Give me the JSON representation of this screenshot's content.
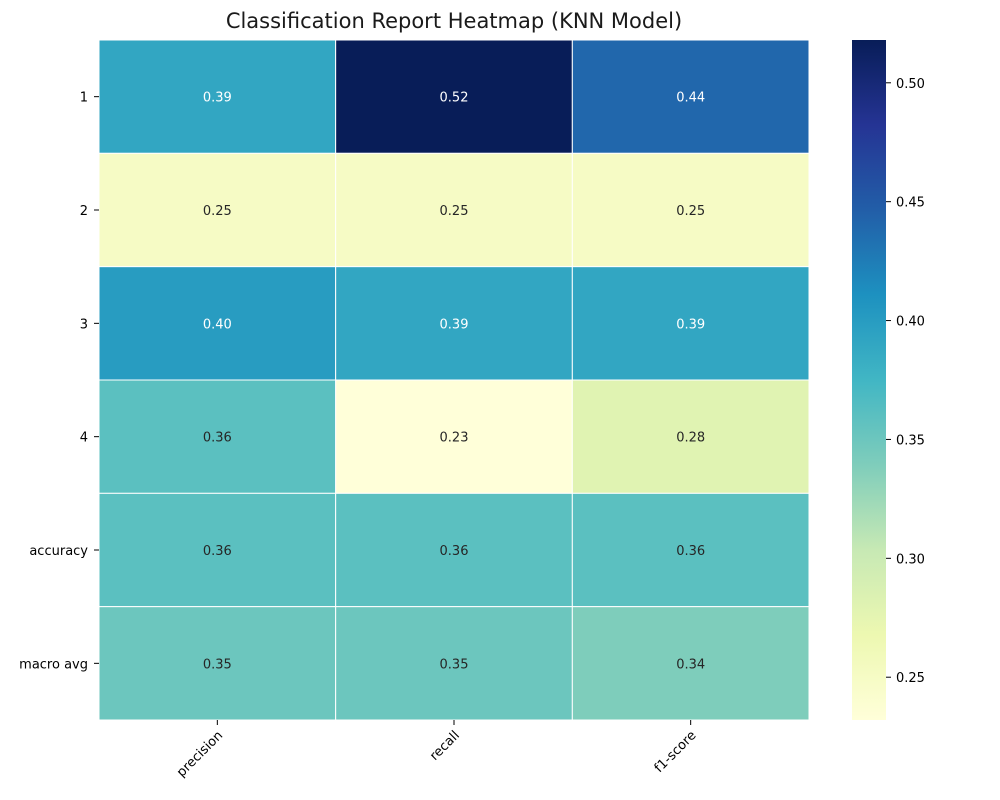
{
  "chart_data": {
    "type": "heatmap",
    "title": "Classification Report Heatmap (KNN Model)",
    "xlabel": "",
    "ylabel": "",
    "columns": [
      "precision",
      "recall",
      "f1-score"
    ],
    "rows": [
      "1",
      "2",
      "3",
      "4",
      "accuracy",
      "macro avg"
    ],
    "values": [
      [
        0.39,
        0.52,
        0.44
      ],
      [
        0.25,
        0.25,
        0.25
      ],
      [
        0.4,
        0.39,
        0.39
      ],
      [
        0.36,
        0.23,
        0.28
      ],
      [
        0.36,
        0.36,
        0.36
      ],
      [
        0.35,
        0.35,
        0.34
      ]
    ],
    "value_format": "0.00",
    "colormap": "YlGnBu",
    "colorbar": {
      "range": [
        0.232,
        0.518
      ],
      "ticks": [
        "0.25",
        "0.30",
        "0.35",
        "0.40",
        "0.45",
        "0.50"
      ],
      "placement": "right"
    },
    "cell_border_color": "#ffffff",
    "grid": false
  }
}
